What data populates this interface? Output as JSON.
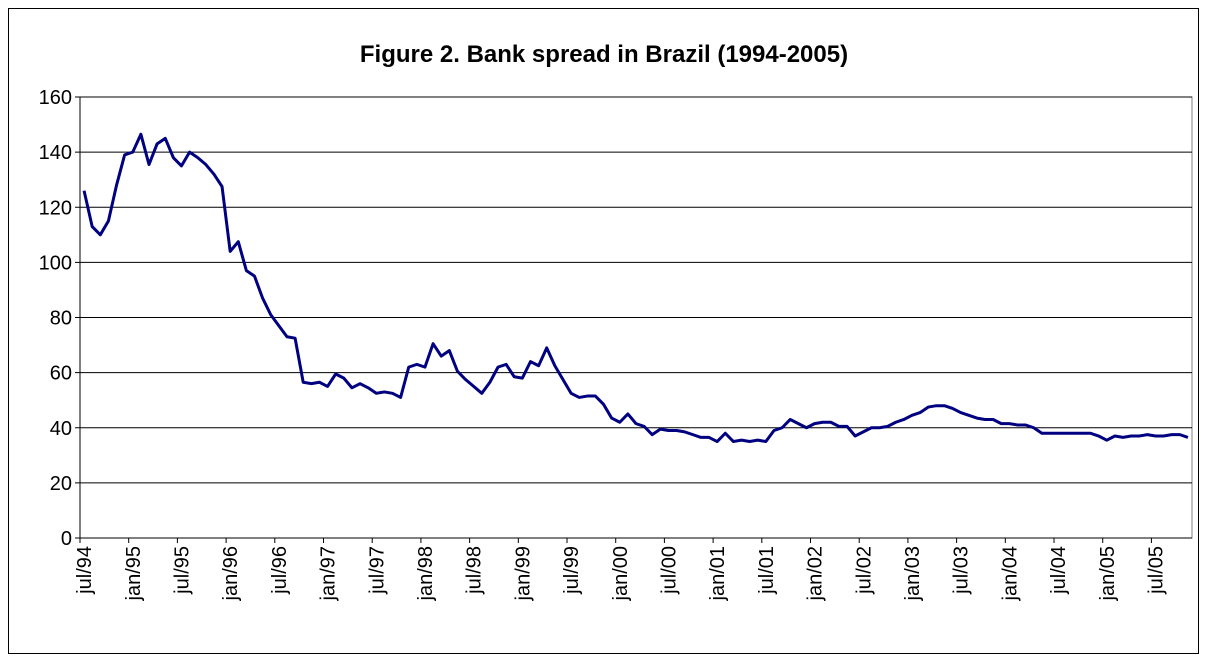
{
  "chart_data": {
    "type": "line",
    "title": "Figure 2. Bank spread in Brazil (1994-2005)",
    "categories": [
      "jul/94",
      null,
      null,
      null,
      null,
      null,
      "jan/95",
      null,
      null,
      null,
      null,
      null,
      "jul/95",
      null,
      null,
      null,
      null,
      null,
      "jan/96",
      null,
      null,
      null,
      null,
      null,
      "jul/96",
      null,
      null,
      null,
      null,
      null,
      "jan/97",
      null,
      null,
      null,
      null,
      null,
      "jul/97",
      null,
      null,
      null,
      null,
      null,
      "jan/98",
      null,
      null,
      null,
      null,
      null,
      "jul/98",
      null,
      null,
      null,
      null,
      null,
      "jan/99",
      null,
      null,
      null,
      null,
      null,
      "jul/99",
      null,
      null,
      null,
      null,
      null,
      "jan/00",
      null,
      null,
      null,
      null,
      null,
      "jul/00",
      null,
      null,
      null,
      null,
      null,
      "jan/01",
      null,
      null,
      null,
      null,
      null,
      "jul/01",
      null,
      null,
      null,
      null,
      null,
      "jan/02",
      null,
      null,
      null,
      null,
      null,
      "jul/02",
      null,
      null,
      null,
      null,
      null,
      "jan/03",
      null,
      null,
      null,
      null,
      null,
      "jul/03",
      null,
      null,
      null,
      null,
      null,
      "jan/04",
      null,
      null,
      null,
      null,
      null,
      "jul/04",
      null,
      null,
      null,
      null,
      null,
      "jan/05",
      null,
      null,
      null,
      null,
      null,
      "jul/05",
      null,
      null,
      null,
      null
    ],
    "values": [
      126,
      113,
      110,
      115,
      128,
      139,
      140,
      146.5,
      135.5,
      143,
      145,
      138,
      135,
      140,
      138,
      135.5,
      132,
      127.5,
      104,
      107.5,
      97,
      95,
      87,
      81,
      77,
      73,
      72.5,
      56.5,
      56,
      56.5,
      55,
      59.5,
      58,
      54.5,
      56,
      54.5,
      52.5,
      53,
      52.5,
      51,
      62,
      63,
      62,
      70.5,
      66,
      68,
      60.5,
      57.5,
      55,
      52.5,
      56.5,
      62,
      63,
      58.5,
      58,
      64,
      62.5,
      69,
      62.5,
      57.5,
      52.5,
      51,
      51.5,
      51.5,
      48.5,
      43.5,
      42,
      45,
      41.5,
      40.5,
      37.5,
      39.5,
      39,
      39,
      38.5,
      37.5,
      36.5,
      36.5,
      35,
      38,
      35,
      35.5,
      35,
      35.5,
      35,
      39,
      40,
      43,
      41.5,
      40,
      41.5,
      42,
      42,
      40.5,
      40.5,
      37,
      38.5,
      40,
      40,
      40.5,
      42,
      43,
      44.5,
      45.5,
      47.5,
      48,
      48,
      47,
      45.5,
      44.5,
      43.5,
      43,
      43,
      41.5,
      41.5,
      41,
      41,
      40,
      38,
      38,
      38,
      38,
      38,
      38,
      38,
      37,
      35.5,
      37,
      36.5,
      37,
      37,
      37.5,
      37,
      37,
      37.5,
      37.5,
      36.5
    ],
    "color": "#000080",
    "ylim": [
      0,
      160
    ],
    "yticks": [
      0,
      20,
      40,
      60,
      80,
      100,
      120,
      140,
      160
    ],
    "grid": true
  }
}
